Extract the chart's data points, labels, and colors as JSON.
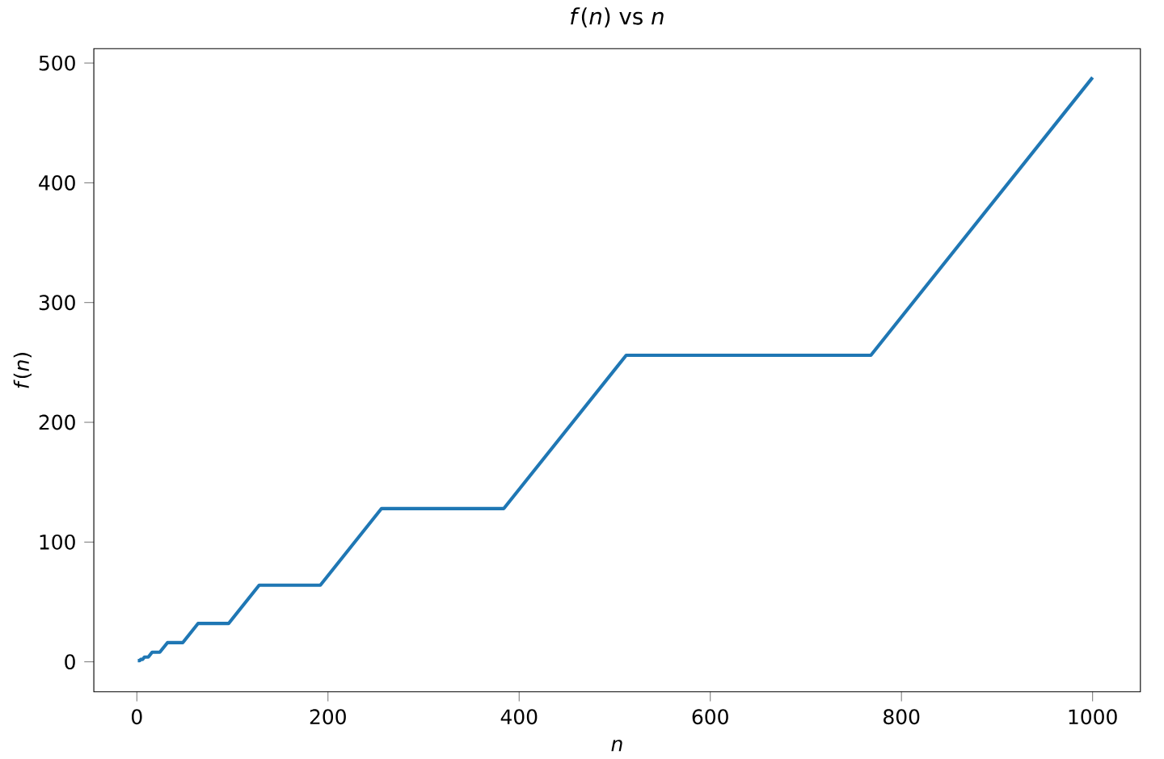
{
  "chart_data": {
    "type": "line",
    "title": "*f*(*n*) vs *n*",
    "xlabel": "n",
    "ylabel": "*f*(*n*)",
    "x": [
      1,
      2,
      3,
      4,
      6,
      8,
      12,
      16,
      24,
      32,
      48,
      64,
      96,
      128,
      192,
      256,
      384,
      512,
      768,
      1000
    ],
    "series": [
      {
        "color": "#1f77b4",
        "values": [
          1,
          1,
          1,
          2,
          2,
          4,
          4,
          8,
          8,
          16,
          16,
          32,
          32,
          64,
          64,
          128,
          128,
          256,
          256,
          488
        ]
      }
    ],
    "xlim": [
      -45,
      1050
    ],
    "ylim": [
      -25,
      512
    ],
    "xticks": [
      0,
      200,
      400,
      600,
      800,
      1000
    ],
    "yticks": [
      0,
      100,
      200,
      300,
      400,
      500
    ],
    "grid": false,
    "marker": "none",
    "line_style": "solid"
  }
}
